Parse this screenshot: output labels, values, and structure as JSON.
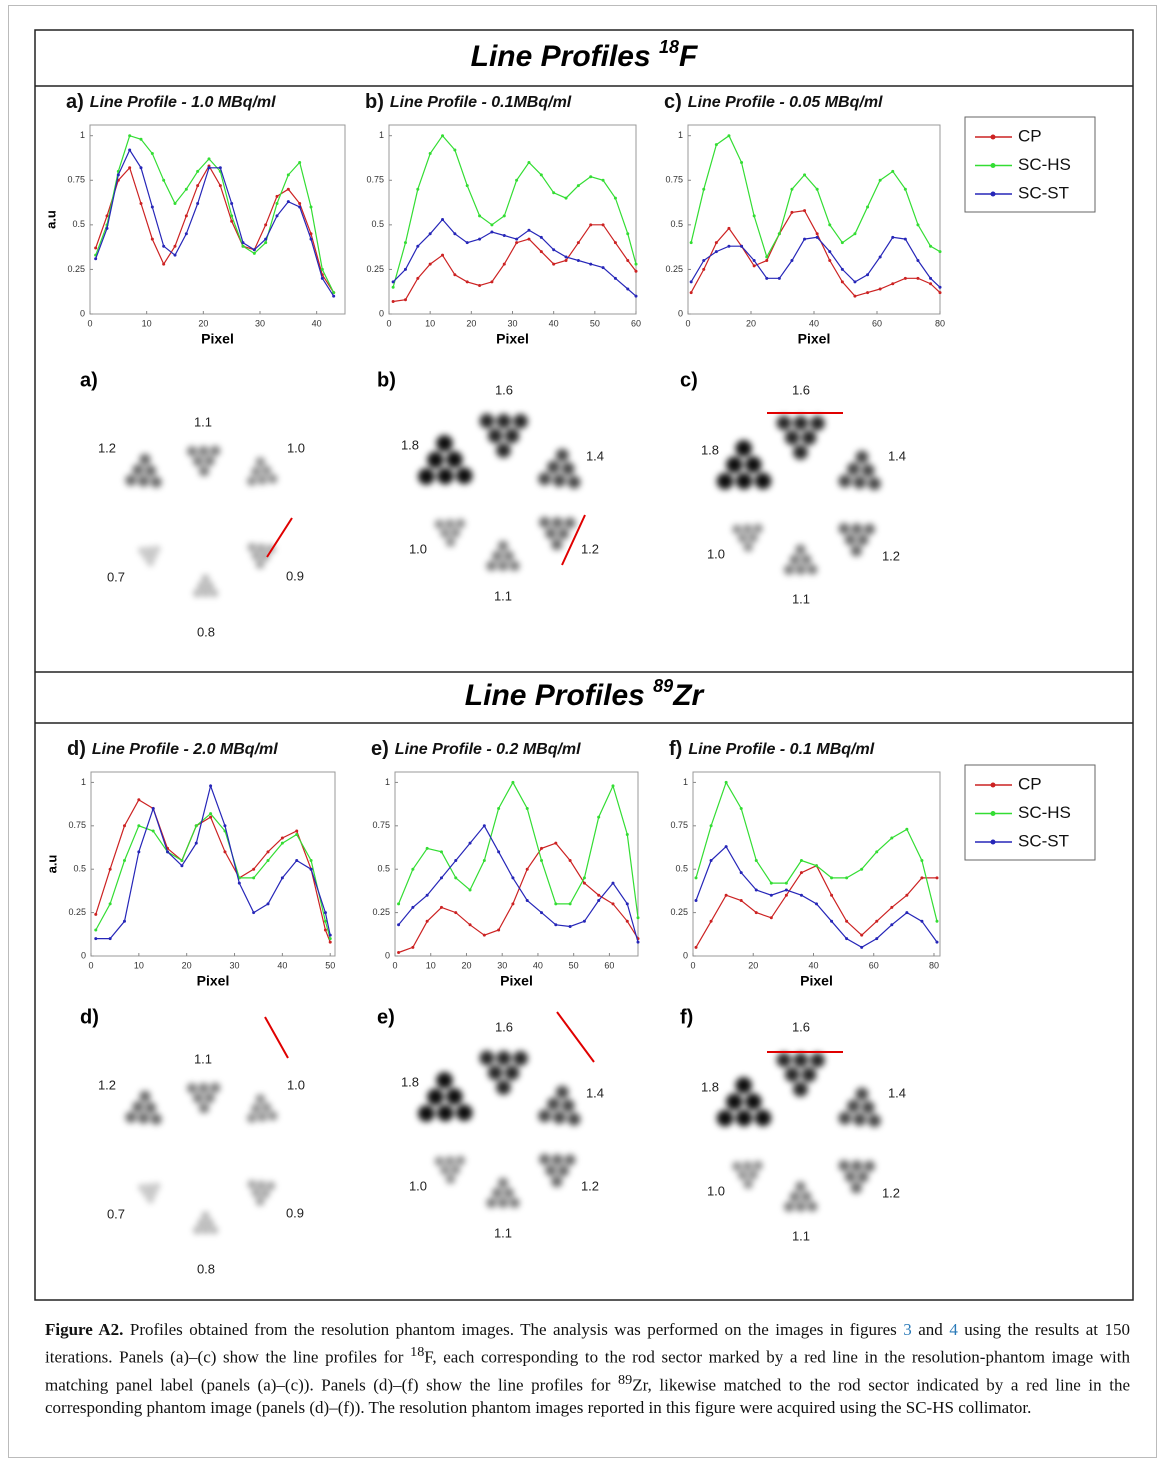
{
  "sections": [
    {
      "title": {
        "text": "Line Profiles ",
        "mass": "18",
        "element": "F"
      },
      "legend": [
        {
          "name": "CP",
          "color": "#cc2222"
        },
        {
          "name": "SC-HS",
          "color": "#33dd33"
        },
        {
          "name": "SC-ST",
          "color": "#2626b8"
        }
      ],
      "charts": [
        {
          "type": "line",
          "panel": "a)",
          "title": "Line Profile - 1.0 MBq/ml",
          "x_label": "Pixel",
          "y_label": "a.u",
          "xlim": [
            0,
            45
          ],
          "xticks": [
            0,
            10,
            20,
            30,
            40
          ],
          "ylim": [
            0,
            1.06
          ],
          "yticks": [
            0,
            0.25,
            0.5,
            0.75,
            1
          ],
          "x": [
            1,
            3,
            5,
            7,
            9,
            11,
            13,
            15,
            17,
            19,
            21,
            23,
            25,
            27,
            29,
            31,
            33,
            35,
            37,
            39,
            41,
            43
          ],
          "series": [
            {
              "values": [
                0.37,
                0.55,
                0.75,
                0.82,
                0.62,
                0.42,
                0.28,
                0.38,
                0.55,
                0.72,
                0.83,
                0.72,
                0.52,
                0.38,
                0.36,
                0.5,
                0.66,
                0.7,
                0.62,
                0.45,
                0.22,
                0.12
              ]
            },
            {
              "values": [
                0.33,
                0.5,
                0.8,
                1.0,
                0.98,
                0.9,
                0.75,
                0.62,
                0.7,
                0.8,
                0.87,
                0.8,
                0.55,
                0.38,
                0.34,
                0.4,
                0.62,
                0.78,
                0.85,
                0.6,
                0.25,
                0.12
              ]
            },
            {
              "values": [
                0.31,
                0.48,
                0.78,
                0.92,
                0.82,
                0.6,
                0.38,
                0.33,
                0.45,
                0.62,
                0.82,
                0.82,
                0.62,
                0.4,
                0.36,
                0.42,
                0.55,
                0.63,
                0.6,
                0.42,
                0.2,
                0.1
              ]
            }
          ]
        },
        {
          "type": "line",
          "panel": "b)",
          "title": "Line Profile - 0.1MBq/ml",
          "x_label": "Pixel",
          "xlim": [
            0,
            60
          ],
          "xticks": [
            0,
            10,
            20,
            30,
            40,
            50,
            60
          ],
          "ylim": [
            0,
            1.06
          ],
          "yticks": [
            0,
            0.25,
            0.5,
            0.75,
            1
          ],
          "x": [
            1,
            4,
            7,
            10,
            13,
            16,
            19,
            22,
            25,
            28,
            31,
            34,
            37,
            40,
            43,
            46,
            49,
            52,
            55,
            58,
            60
          ],
          "series": [
            {
              "values": [
                0.07,
                0.08,
                0.2,
                0.28,
                0.33,
                0.22,
                0.18,
                0.16,
                0.18,
                0.28,
                0.4,
                0.42,
                0.35,
                0.28,
                0.3,
                0.4,
                0.5,
                0.5,
                0.4,
                0.3,
                0.24
              ]
            },
            {
              "values": [
                0.15,
                0.4,
                0.7,
                0.9,
                1.0,
                0.92,
                0.72,
                0.55,
                0.5,
                0.55,
                0.75,
                0.85,
                0.78,
                0.68,
                0.65,
                0.72,
                0.77,
                0.75,
                0.65,
                0.45,
                0.28
              ]
            },
            {
              "values": [
                0.18,
                0.25,
                0.38,
                0.45,
                0.53,
                0.45,
                0.4,
                0.42,
                0.46,
                0.44,
                0.42,
                0.47,
                0.43,
                0.36,
                0.32,
                0.3,
                0.28,
                0.26,
                0.2,
                0.14,
                0.1
              ]
            }
          ]
        },
        {
          "type": "line",
          "panel": "c)",
          "title": "Line Profile - 0.05 MBq/ml",
          "x_label": "Pixel",
          "xlim": [
            0,
            80
          ],
          "xticks": [
            0,
            20,
            40,
            60,
            80
          ],
          "ylim": [
            0,
            1.06
          ],
          "yticks": [
            0,
            0.25,
            0.5,
            0.75,
            1
          ],
          "x": [
            1,
            5,
            9,
            13,
            17,
            21,
            25,
            29,
            33,
            37,
            41,
            45,
            49,
            53,
            57,
            61,
            65,
            69,
            73,
            77,
            80
          ],
          "series": [
            {
              "values": [
                0.12,
                0.25,
                0.4,
                0.48,
                0.38,
                0.27,
                0.3,
                0.45,
                0.57,
                0.58,
                0.45,
                0.3,
                0.18,
                0.1,
                0.12,
                0.14,
                0.17,
                0.2,
                0.2,
                0.17,
                0.12
              ]
            },
            {
              "values": [
                0.4,
                0.7,
                0.95,
                1.0,
                0.85,
                0.55,
                0.32,
                0.45,
                0.7,
                0.78,
                0.7,
                0.5,
                0.4,
                0.45,
                0.6,
                0.75,
                0.8,
                0.7,
                0.5,
                0.38,
                0.35
              ]
            },
            {
              "values": [
                0.18,
                0.3,
                0.35,
                0.38,
                0.38,
                0.3,
                0.2,
                0.2,
                0.3,
                0.42,
                0.43,
                0.35,
                0.25,
                0.18,
                0.22,
                0.32,
                0.43,
                0.42,
                0.3,
                0.2,
                0.15
              ]
            }
          ]
        }
      ],
      "phantoms": [
        {
          "panel": "a)",
          "sectors": [
            "1.1",
            "1.2",
            "1.0",
            "0.7",
            "0.9",
            "0.8"
          ]
        },
        {
          "panel": "b)",
          "sectors": [
            "1.6",
            "1.8",
            "1.4",
            "1.0",
            "1.2",
            "1.1"
          ]
        },
        {
          "panel": "c)",
          "sectors": [
            "1.6",
            "1.8",
            "1.4",
            "1.0",
            "1.2",
            "1.1"
          ]
        }
      ]
    },
    {
      "title": {
        "text": "Line Profiles ",
        "mass": "89",
        "element": "Zr"
      },
      "legend": [
        {
          "name": "CP",
          "color": "#cc2222"
        },
        {
          "name": "SC-HS",
          "color": "#33dd33"
        },
        {
          "name": "SC-ST",
          "color": "#2626b8"
        }
      ],
      "charts": [
        {
          "type": "line",
          "panel": "d)",
          "title": "Line Profile - 2.0 MBq/ml",
          "x_label": "Pixel",
          "y_label": "a.u",
          "xlim": [
            0,
            51
          ],
          "xticks": [
            0,
            10,
            20,
            30,
            40,
            50
          ],
          "ylim": [
            0,
            1.06
          ],
          "yticks": [
            0,
            0.25,
            0.5,
            0.75,
            1
          ],
          "x": [
            1,
            4,
            7,
            10,
            13,
            16,
            19,
            22,
            25,
            28,
            31,
            34,
            37,
            40,
            43,
            46,
            49,
            50
          ],
          "series": [
            {
              "values": [
                0.24,
                0.5,
                0.75,
                0.9,
                0.85,
                0.62,
                0.55,
                0.75,
                0.8,
                0.6,
                0.45,
                0.5,
                0.6,
                0.68,
                0.72,
                0.5,
                0.15,
                0.08
              ]
            },
            {
              "values": [
                0.15,
                0.3,
                0.55,
                0.75,
                0.72,
                0.6,
                0.55,
                0.75,
                0.82,
                0.72,
                0.45,
                0.45,
                0.55,
                0.65,
                0.7,
                0.55,
                0.2,
                0.1
              ]
            },
            {
              "values": [
                0.1,
                0.1,
                0.2,
                0.6,
                0.85,
                0.6,
                0.52,
                0.65,
                0.98,
                0.75,
                0.42,
                0.25,
                0.3,
                0.45,
                0.55,
                0.5,
                0.25,
                0.12
              ]
            }
          ]
        },
        {
          "type": "line",
          "panel": "e)",
          "title": "Line Profile - 0.2 MBq/ml",
          "x_label": "Pixel",
          "xlim": [
            0,
            68
          ],
          "xticks": [
            0,
            10,
            20,
            30,
            40,
            50,
            60
          ],
          "ylim": [
            0,
            1.06
          ],
          "yticks": [
            0,
            0.25,
            0.5,
            0.75,
            1
          ],
          "x": [
            1,
            5,
            9,
            13,
            17,
            21,
            25,
            29,
            33,
            37,
            41,
            45,
            49,
            53,
            57,
            61,
            65,
            68
          ],
          "series": [
            {
              "values": [
                0.02,
                0.05,
                0.2,
                0.28,
                0.25,
                0.18,
                0.12,
                0.15,
                0.3,
                0.5,
                0.62,
                0.65,
                0.55,
                0.42,
                0.35,
                0.3,
                0.2,
                0.1
              ]
            },
            {
              "values": [
                0.3,
                0.5,
                0.62,
                0.6,
                0.45,
                0.38,
                0.55,
                0.85,
                1.0,
                0.85,
                0.55,
                0.3,
                0.3,
                0.45,
                0.8,
                0.98,
                0.7,
                0.22
              ]
            },
            {
              "values": [
                0.18,
                0.28,
                0.35,
                0.45,
                0.55,
                0.65,
                0.75,
                0.6,
                0.45,
                0.32,
                0.25,
                0.18,
                0.17,
                0.2,
                0.32,
                0.42,
                0.3,
                0.08
              ]
            }
          ]
        },
        {
          "type": "line",
          "panel": "f)",
          "title": "Line Profile - 0.1 MBq/ml",
          "x_label": "Pixel",
          "xlim": [
            0,
            82
          ],
          "xticks": [
            0,
            20,
            40,
            60,
            80
          ],
          "ylim": [
            0,
            1.06
          ],
          "yticks": [
            0,
            0.25,
            0.5,
            0.75,
            1
          ],
          "x": [
            1,
            6,
            11,
            16,
            21,
            26,
            31,
            36,
            41,
            46,
            51,
            56,
            61,
            66,
            71,
            76,
            81
          ],
          "series": [
            {
              "values": [
                0.05,
                0.2,
                0.35,
                0.32,
                0.25,
                0.22,
                0.35,
                0.48,
                0.52,
                0.35,
                0.2,
                0.12,
                0.2,
                0.28,
                0.35,
                0.45,
                0.45
              ]
            },
            {
              "values": [
                0.45,
                0.75,
                1.0,
                0.85,
                0.55,
                0.42,
                0.42,
                0.55,
                0.52,
                0.45,
                0.45,
                0.5,
                0.6,
                0.68,
                0.73,
                0.55,
                0.2
              ]
            },
            {
              "values": [
                0.32,
                0.55,
                0.63,
                0.48,
                0.38,
                0.35,
                0.38,
                0.35,
                0.3,
                0.2,
                0.1,
                0.05,
                0.1,
                0.18,
                0.25,
                0.2,
                0.08
              ]
            }
          ]
        }
      ],
      "phantoms": [
        {
          "panel": "d)",
          "sectors": [
            "1.1",
            "1.2",
            "1.0",
            "0.7",
            "0.9",
            "0.8"
          ]
        },
        {
          "panel": "e)",
          "sectors": [
            "1.6",
            "1.8",
            "1.4",
            "1.0",
            "1.2",
            "1.1"
          ]
        },
        {
          "panel": "f)",
          "sectors": [
            "1.6",
            "1.8",
            "1.4",
            "1.0",
            "1.2",
            "1.1"
          ]
        }
      ]
    }
  ],
  "caption": {
    "label": "Figure A2.",
    "t1": " Profiles obtained from the resolution phantom images. The analysis was performed on the images in figures ",
    "ref1": "3",
    "t2": " and ",
    "ref2": "4",
    "t3": " using the results at 150 iterations. Panels (a)–(c) show the line profiles for ",
    "sup1": "18",
    "t4": "F, each corresponding to the rod sector marked by a red line in the resolution-phantom image with matching panel label (panels (a)–(c)). Panels (d)–(f) show the line profiles for ",
    "sup2": "89",
    "t5": "Zr, likewise matched to the rod sector indicated by a red line in the corresponding phantom image (panels (d)–(f)). The resolution phantom images reported in this figure were acquired using the SC-HS collimator."
  }
}
